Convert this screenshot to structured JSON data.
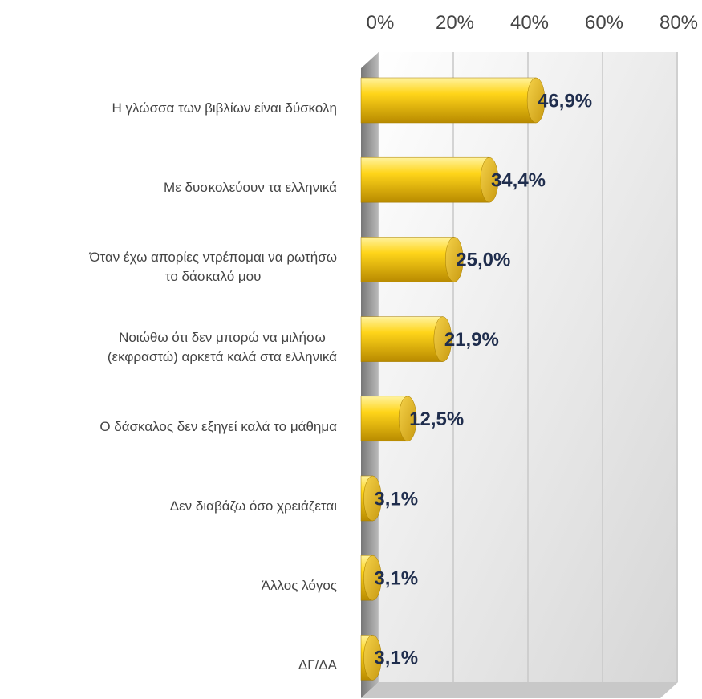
{
  "chart_data": {
    "type": "bar",
    "orientation": "horizontal",
    "categories": [
      "Η γλώσσα των βιβλίων είναι δύσκολη",
      "Με δυσκολεύουν τα ελληνικά",
      "Όταν έχω απορίες ντρέπομαι να ρωτήσω\nτο δάσκαλό μου",
      "Νοιώθω ότι δεν μπορώ να μιλήσω\n(εκφραστώ) αρκετά καλά στα ελληνικά",
      "Ο δάσκαλος δεν εξηγεί καλά το μάθημα",
      "Δεν διαβάζω όσο χρειάζεται",
      "Άλλος λόγος",
      "ΔΓ/ΔΑ"
    ],
    "values": [
      46.9,
      34.4,
      25.0,
      21.9,
      12.5,
      3.1,
      3.1,
      3.1
    ],
    "value_labels": [
      "46,9%",
      "34,4%",
      "25,0%",
      "21,9%",
      "12,5%",
      "3,1%",
      "3,1%",
      "3,1%"
    ],
    "color": "#f2c200",
    "xlim": [
      0,
      80
    ],
    "xticks": [
      {
        "value": 0,
        "label": "0%"
      },
      {
        "value": 20,
        "label": "20%"
      },
      {
        "value": 40,
        "label": "40%"
      },
      {
        "value": 60,
        "label": "60%"
      },
      {
        "value": 80,
        "label": "80%"
      }
    ],
    "grid": true
  }
}
